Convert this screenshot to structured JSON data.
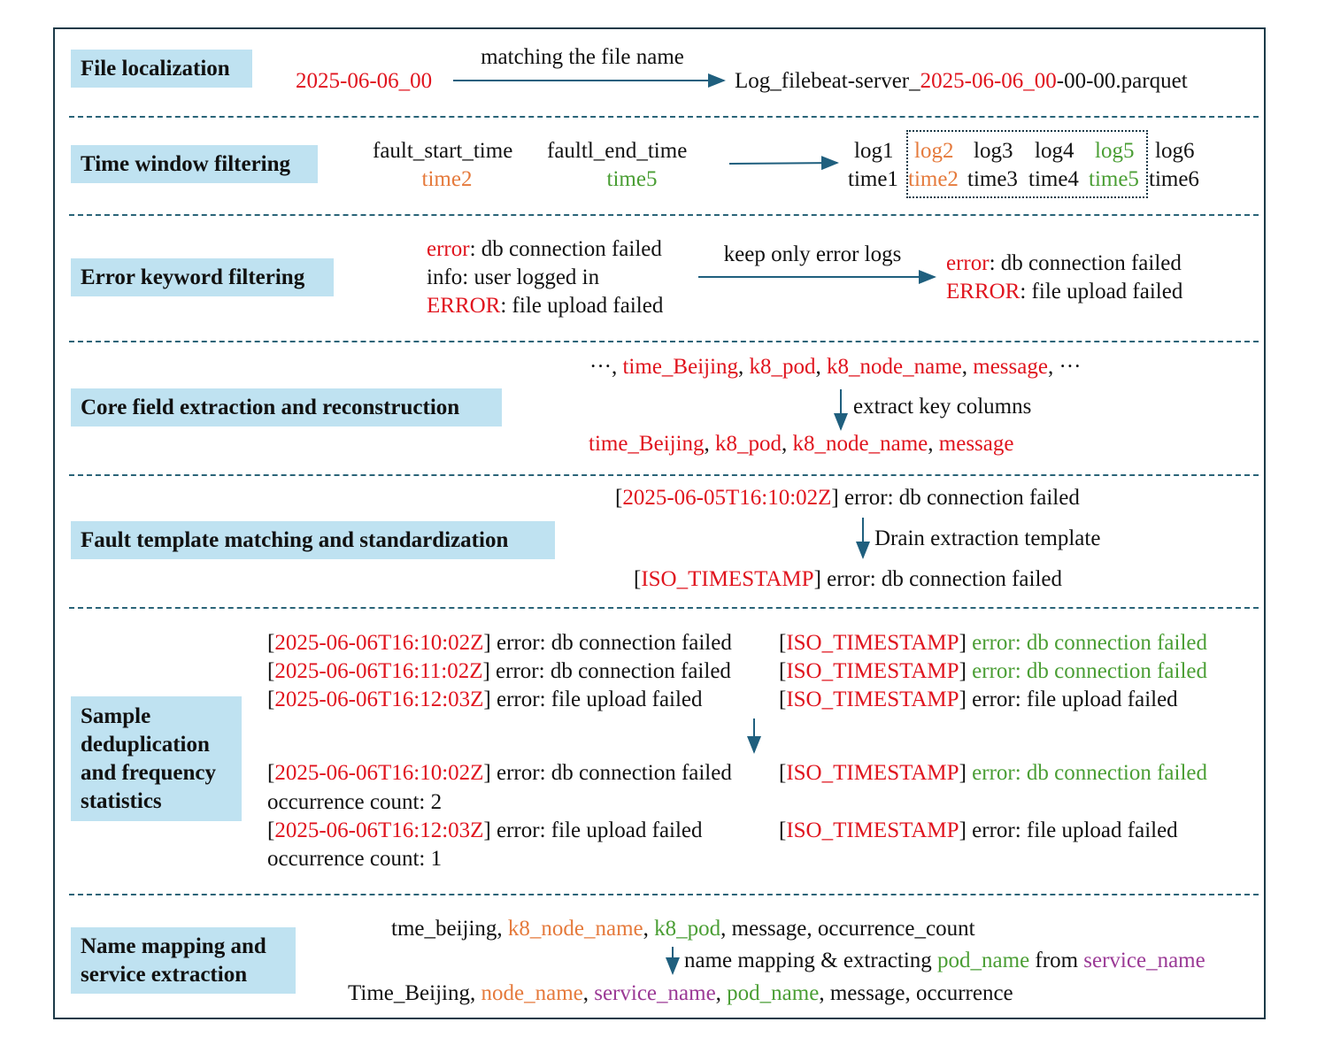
{
  "colors": {
    "red": "#e0141e",
    "orange": "#e57a3c",
    "green": "#4a9e34",
    "purple": "#9b3a96",
    "label_bg": "#bfe2f1",
    "arrow": "#1f5f7e",
    "border": "#1c3a48"
  },
  "labels": [
    "File localization",
    "Time window filtering",
    "Error keyword filtering",
    "Core field extraction and reconstruction",
    "Fault template matching and standardization",
    "Sample deduplication and frequency statistics",
    "Name mapping and service extraction"
  ],
  "lines": [
    [
      {
        "t": "matching the file name",
        "c": "black"
      }
    ],
    [
      {
        "t": "2025-06-06_00",
        "c": "red"
      }
    ],
    [
      {
        "t": "Log_filebeat-server_",
        "c": "black"
      },
      {
        "t": "2025-06-06_00",
        "c": "red"
      },
      {
        "t": "-00-00.parquet",
        "c": "black"
      }
    ],
    [
      {
        "t": "fault_start_time",
        "c": "black"
      }
    ],
    [
      {
        "t": "time2",
        "c": "orange"
      }
    ],
    [
      {
        "t": "faultl_end_time",
        "c": "black"
      }
    ],
    [
      {
        "t": "time5",
        "c": "green"
      }
    ],
    [
      {
        "t": "log1",
        "c": "black"
      }
    ],
    [
      {
        "t": "log2",
        "c": "orange"
      }
    ],
    [
      {
        "t": "log3",
        "c": "black"
      }
    ],
    [
      {
        "t": "log4",
        "c": "black"
      }
    ],
    [
      {
        "t": "log5",
        "c": "green"
      }
    ],
    [
      {
        "t": "log6",
        "c": "black"
      }
    ],
    [
      {
        "t": "time1",
        "c": "black"
      }
    ],
    [
      {
        "t": "time2",
        "c": "orange"
      }
    ],
    [
      {
        "t": "time3",
        "c": "black"
      }
    ],
    [
      {
        "t": "time4",
        "c": "black"
      }
    ],
    [
      {
        "t": "time5",
        "c": "green"
      }
    ],
    [
      {
        "t": "time6",
        "c": "black"
      }
    ],
    [
      {
        "t": "error",
        "c": "red"
      },
      {
        "t": ": db connection failed",
        "c": "black"
      }
    ],
    [
      {
        "t": "info: user logged in",
        "c": "black"
      }
    ],
    [
      {
        "t": "ERROR",
        "c": "red"
      },
      {
        "t": ": file upload failed",
        "c": "black"
      }
    ],
    [
      {
        "t": "keep only error logs",
        "c": "black"
      }
    ],
    [
      {
        "t": "error",
        "c": "red"
      },
      {
        "t": ": db connection failed",
        "c": "black"
      }
    ],
    [
      {
        "t": "ERROR",
        "c": "red"
      },
      {
        "t": ": file upload failed",
        "c": "black"
      }
    ],
    [
      {
        "t": "···, ",
        "c": "black"
      },
      {
        "t": "time_Beijing",
        "c": "red"
      },
      {
        "t": ", ",
        "c": "black"
      },
      {
        "t": "k8_pod",
        "c": "red"
      },
      {
        "t": ", ",
        "c": "black"
      },
      {
        "t": "k8_node_name",
        "c": "red"
      },
      {
        "t": ", ",
        "c": "black"
      },
      {
        "t": "message",
        "c": "red"
      },
      {
        "t": ", ···",
        "c": "black"
      }
    ],
    [
      {
        "t": "extract key columns",
        "c": "black"
      }
    ],
    [
      {
        "t": "time_Beijing",
        "c": "red"
      },
      {
        "t": ", ",
        "c": "black"
      },
      {
        "t": "k8_pod",
        "c": "red"
      },
      {
        "t": ", ",
        "c": "black"
      },
      {
        "t": "k8_node_name",
        "c": "red"
      },
      {
        "t": ", ",
        "c": "black"
      },
      {
        "t": "message",
        "c": "red"
      }
    ],
    [
      {
        "t": "[",
        "c": "black"
      },
      {
        "t": "2025-06-05T16:10:02Z",
        "c": "red"
      },
      {
        "t": "] error: db connection failed",
        "c": "black"
      }
    ],
    [
      {
        "t": "Drain extraction template",
        "c": "black"
      }
    ],
    [
      {
        "t": "[",
        "c": "black"
      },
      {
        "t": "ISO_TIMESTAMP",
        "c": "red"
      },
      {
        "t": "] error: db connection failed",
        "c": "black"
      }
    ],
    [
      {
        "t": "[",
        "c": "black"
      },
      {
        "t": "2025-06-06T16:10:02Z",
        "c": "red"
      },
      {
        "t": "] error: db connection failed",
        "c": "black"
      }
    ],
    [
      {
        "t": "[",
        "c": "black"
      },
      {
        "t": "ISO_TIMESTAMP",
        "c": "red"
      },
      {
        "t": "] ",
        "c": "black"
      },
      {
        "t": "error: db connection failed",
        "c": "green"
      }
    ],
    [
      {
        "t": "[",
        "c": "black"
      },
      {
        "t": "2025-06-06T16:11:02Z",
        "c": "red"
      },
      {
        "t": "] error: db connection failed",
        "c": "black"
      }
    ],
    [
      {
        "t": "[",
        "c": "black"
      },
      {
        "t": "ISO_TIMESTAMP",
        "c": "red"
      },
      {
        "t": "] ",
        "c": "black"
      },
      {
        "t": "error: db connection failed",
        "c": "green"
      }
    ],
    [
      {
        "t": "[",
        "c": "black"
      },
      {
        "t": "2025-06-06T16:12:03Z",
        "c": "red"
      },
      {
        "t": "] error: file upload failed",
        "c": "black"
      }
    ],
    [
      {
        "t": "[",
        "c": "black"
      },
      {
        "t": "ISO_TIMESTAMP",
        "c": "red"
      },
      {
        "t": "] error: file upload failed",
        "c": "black"
      }
    ],
    [
      {
        "t": "[",
        "c": "black"
      },
      {
        "t": "2025-06-06T16:10:02Z",
        "c": "red"
      },
      {
        "t": "] error: db connection failed",
        "c": "black"
      }
    ],
    [
      {
        "t": "[",
        "c": "black"
      },
      {
        "t": "ISO_TIMESTAMP",
        "c": "red"
      },
      {
        "t": "] ",
        "c": "black"
      },
      {
        "t": "error: db connection failed",
        "c": "green"
      }
    ],
    [
      {
        "t": "occurrence count: 2",
        "c": "black"
      }
    ],
    [
      {
        "t": "[",
        "c": "black"
      },
      {
        "t": "2025-06-06T16:12:03Z",
        "c": "red"
      },
      {
        "t": "] error: file upload failed",
        "c": "black"
      }
    ],
    [
      {
        "t": "[",
        "c": "black"
      },
      {
        "t": "ISO_TIMESTAMP",
        "c": "red"
      },
      {
        "t": "] error: file upload failed",
        "c": "black"
      }
    ],
    [
      {
        "t": "occurrence count: 1",
        "c": "black"
      }
    ],
    [
      {
        "t": "tme_beijing, ",
        "c": "black"
      },
      {
        "t": "k8_node_name",
        "c": "orange"
      },
      {
        "t": ", ",
        "c": "black"
      },
      {
        "t": "k8_pod",
        "c": "green"
      },
      {
        "t": ", message, occurrence_count",
        "c": "black"
      }
    ],
    [
      {
        "t": "name mapping & extracting ",
        "c": "black"
      },
      {
        "t": "pod_name",
        "c": "green"
      },
      {
        "t": " from ",
        "c": "black"
      },
      {
        "t": "service_name",
        "c": "purple"
      }
    ],
    [
      {
        "t": "Time_Beijing, ",
        "c": "black"
      },
      {
        "t": "node_name",
        "c": "orange"
      },
      {
        "t": ", ",
        "c": "black"
      },
      {
        "t": "service_name",
        "c": "purple"
      },
      {
        "t": ", ",
        "c": "black"
      },
      {
        "t": "pod_name",
        "c": "green"
      },
      {
        "t": ", message, occurrence",
        "c": "black"
      }
    ]
  ]
}
